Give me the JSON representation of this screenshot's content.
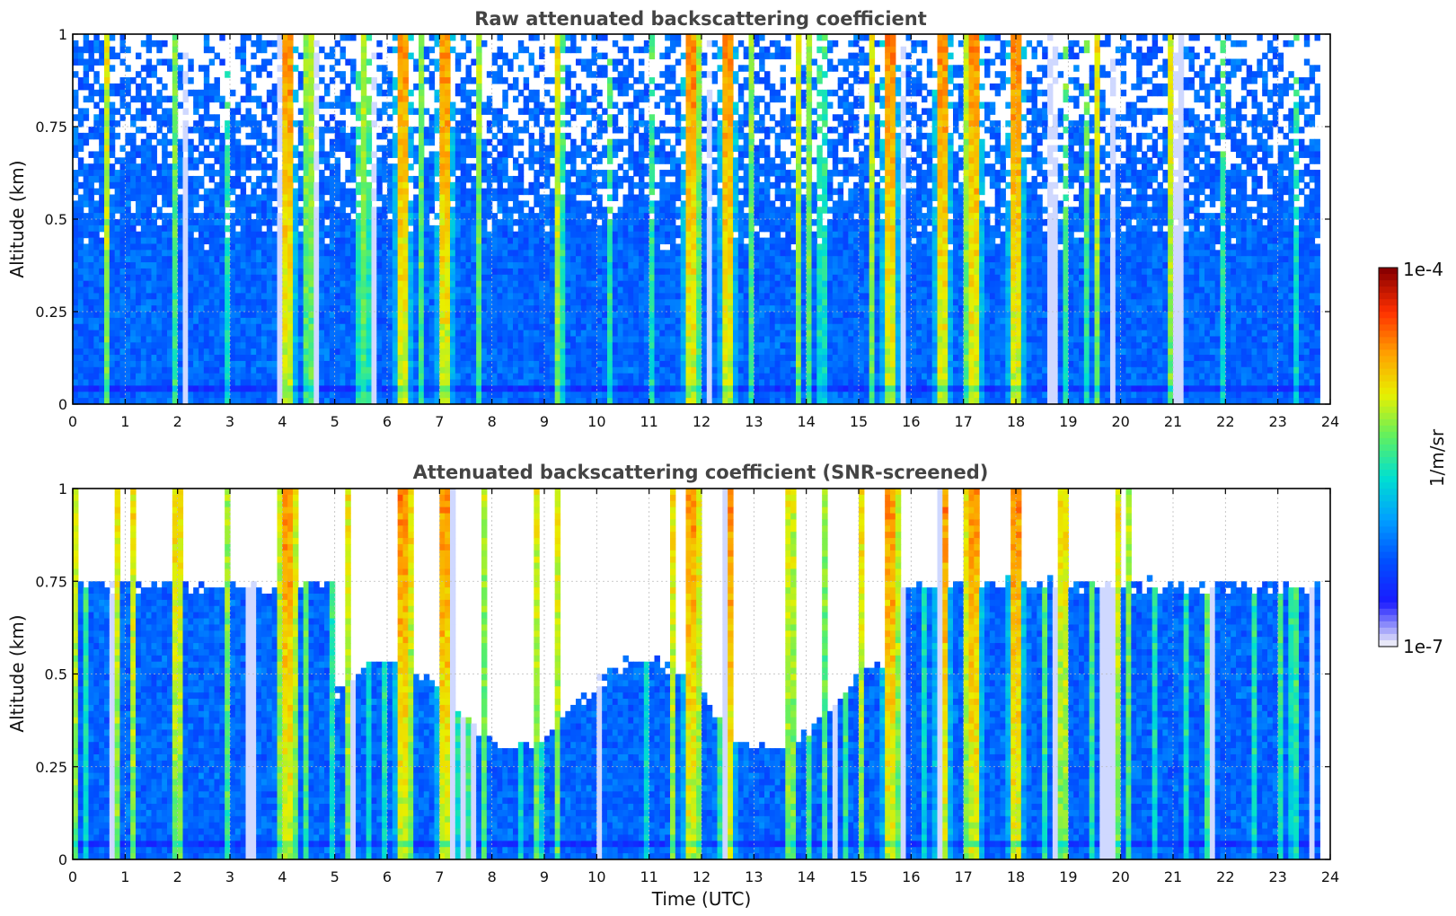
{
  "chart_data": [
    {
      "type": "heatmap",
      "title": "Raw attenuated backscattering coefficient",
      "xlabel": "",
      "ylabel": "Altitude (km)",
      "xlim": [
        0,
        24
      ],
      "ylim": [
        0,
        1
      ],
      "x_ticks": [
        "0",
        "1",
        "2",
        "3",
        "4",
        "5",
        "6",
        "7",
        "8",
        "9",
        "10",
        "11",
        "12",
        "13",
        "14",
        "15",
        "16",
        "17",
        "18",
        "19",
        "20",
        "21",
        "22",
        "23",
        "24"
      ],
      "y_ticks": [
        "0",
        "0.25",
        "0.5",
        "0.75",
        "1"
      ],
      "grid": true,
      "data_end_hour": 23.8,
      "background_level": "moderate (blue)",
      "noise_region": "above ~0.4 km, strongest above 0.75 km",
      "high_backscatter_bands_utc_hours": [
        4.1,
        6.3,
        7.1,
        11.8,
        12.5,
        15.6,
        16.6,
        17.2,
        18.0
      ]
    },
    {
      "type": "heatmap",
      "title": "Attenuated backscattering coefficient (SNR-screened)",
      "xlabel": "Time (UTC)",
      "ylabel": "Altitude (km)",
      "xlim": [
        0,
        24
      ],
      "ylim": [
        0,
        1
      ],
      "x_ticks": [
        "0",
        "1",
        "2",
        "3",
        "4",
        "5",
        "6",
        "7",
        "8",
        "9",
        "10",
        "11",
        "12",
        "13",
        "14",
        "15",
        "16",
        "17",
        "18",
        "19",
        "20",
        "21",
        "22",
        "23",
        "24"
      ],
      "y_ticks": [
        "0",
        "0.25",
        "0.5",
        "0.75",
        "1"
      ],
      "grid": true,
      "data_end_hour": 23.8,
      "screened_region": "white (no data) above ~0.75 km near 0–2 UTC and 20–24 UTC; above ~0.4–0.55 km between 5–15 UTC"
    }
  ],
  "colorbar": {
    "label": "1/m/sr",
    "max_label": "1e-4",
    "min_label": "1e-7",
    "scale": "log",
    "colormap": [
      "#e8e8f8",
      "#1a1aff",
      "#0050ff",
      "#00a0ff",
      "#00e0d0",
      "#60f060",
      "#e8f000",
      "#ffa000",
      "#ff3000",
      "#8a0000"
    ]
  }
}
